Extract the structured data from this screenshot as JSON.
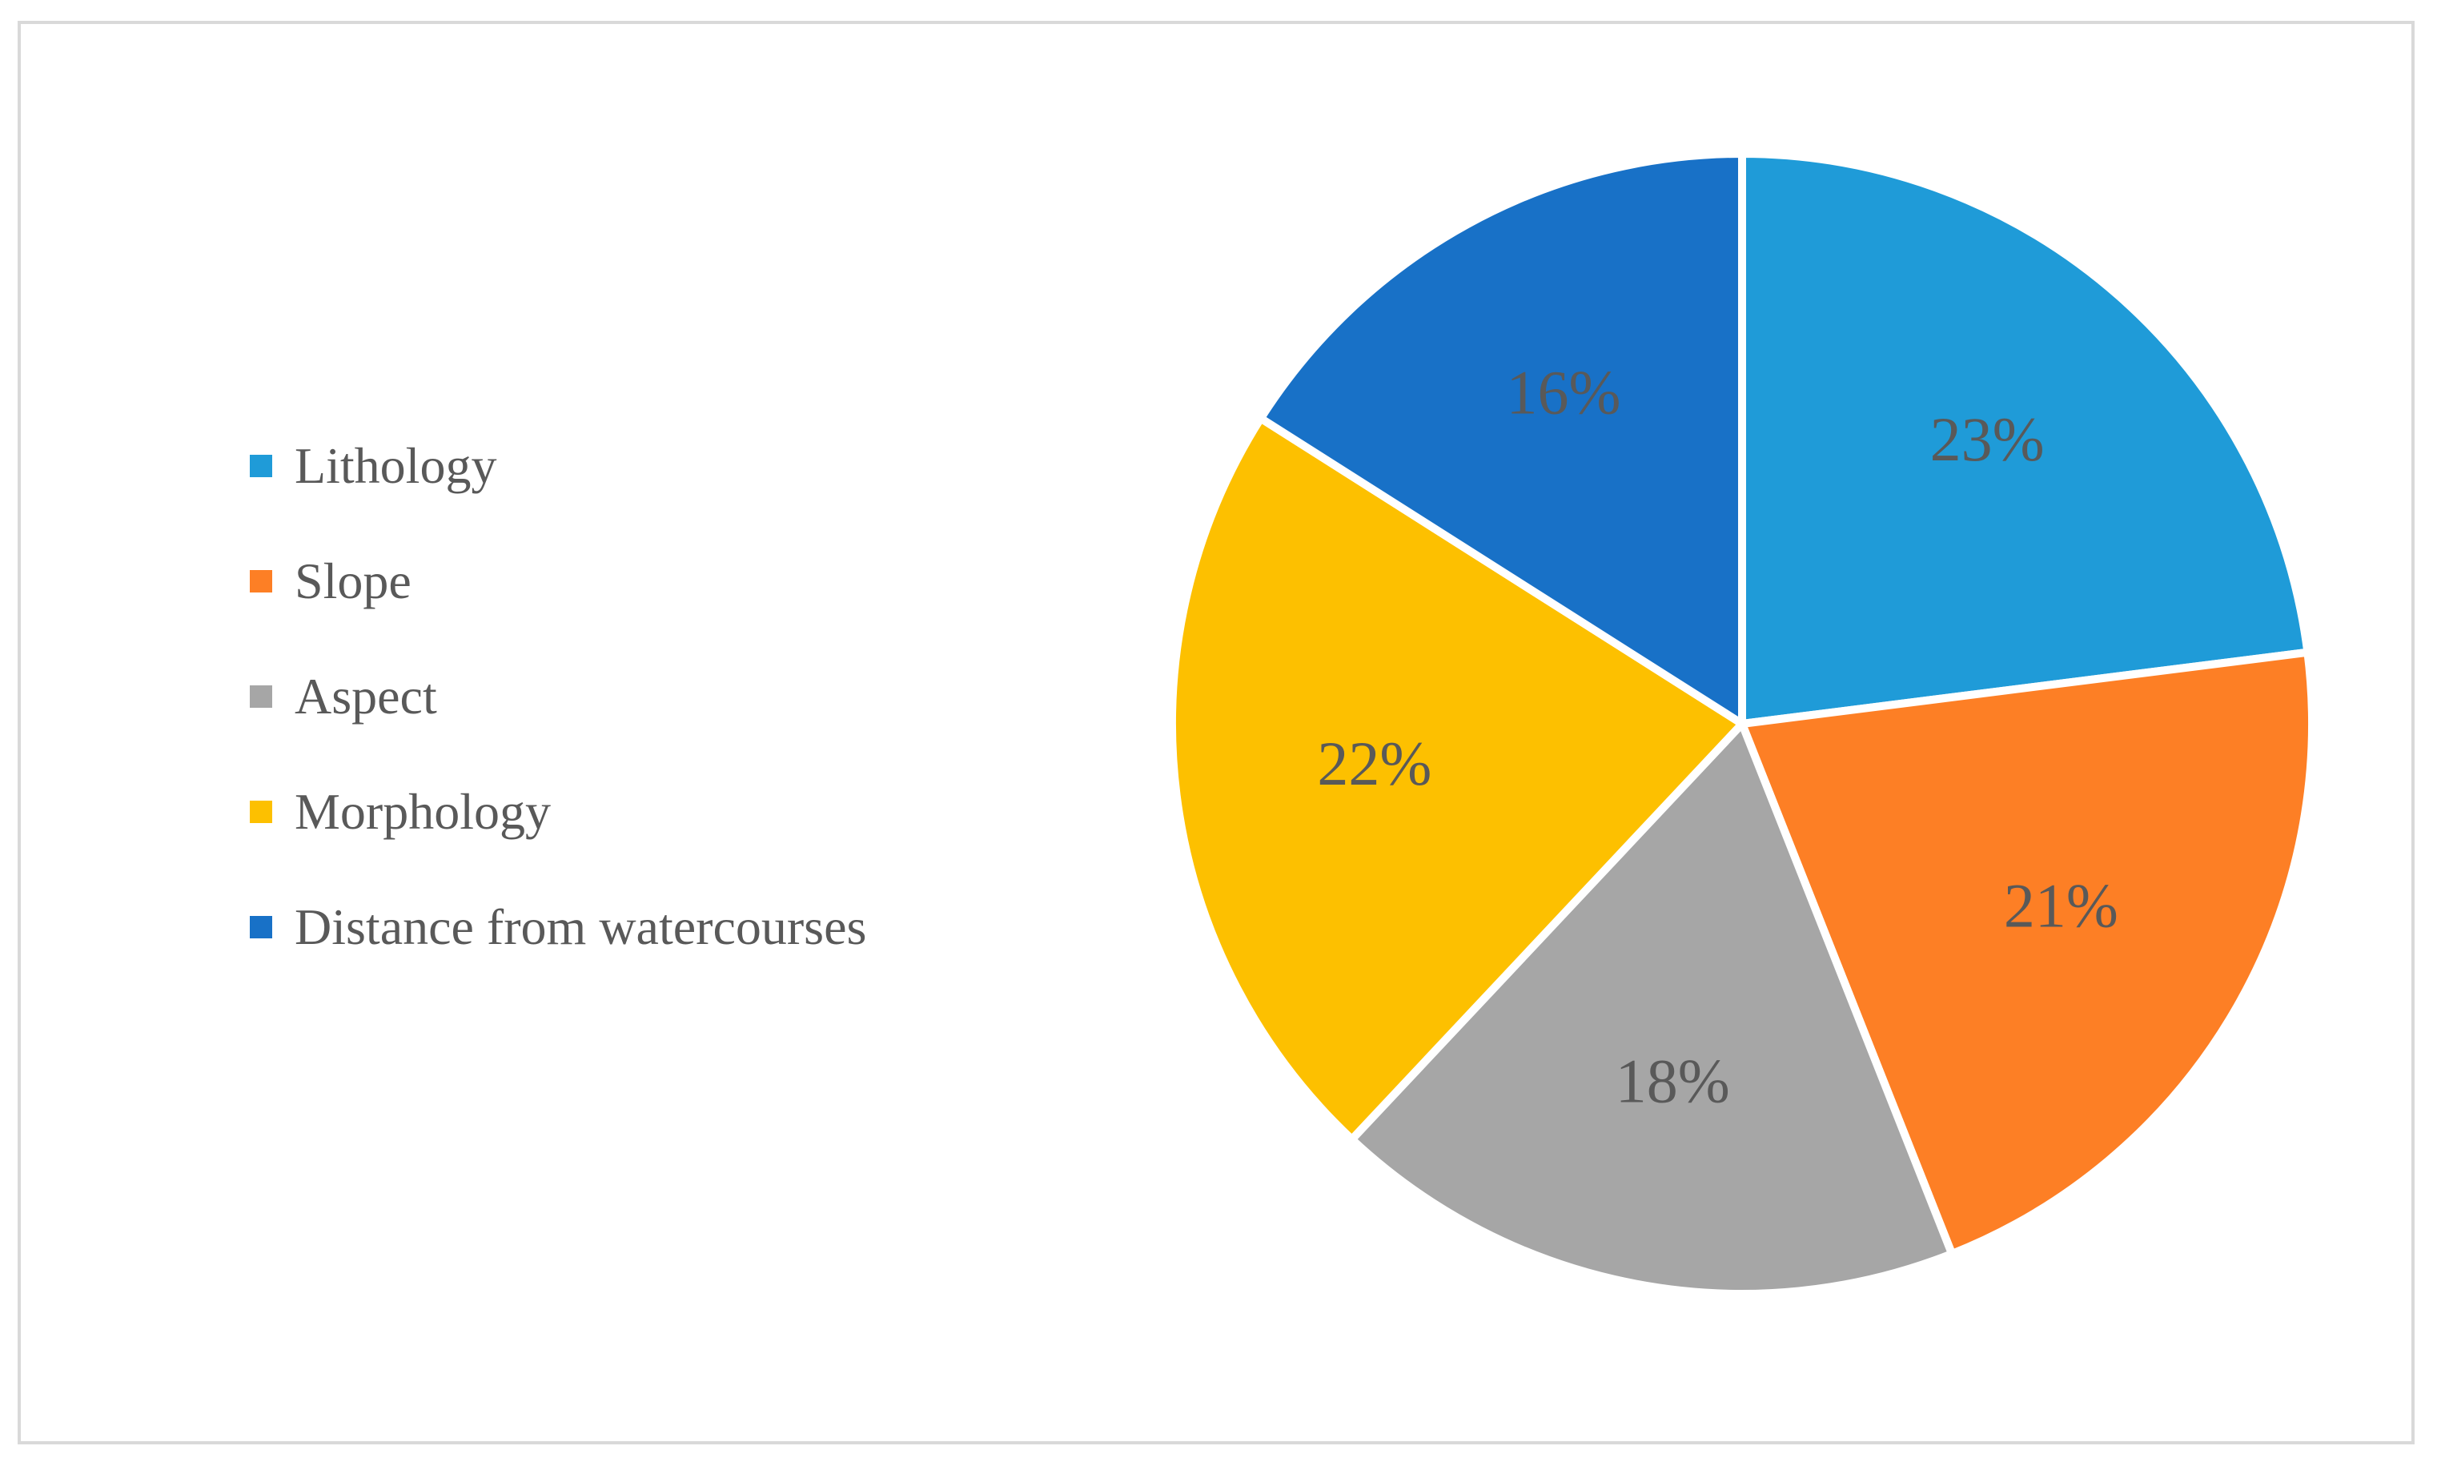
{
  "chart_data": {
    "type": "pie",
    "slices": [
      {
        "label": "Lithology",
        "value": 23,
        "value_label": "23%",
        "color": "#1f9bd8"
      },
      {
        "label": "Slope",
        "value": 21,
        "value_label": "21%",
        "color": "#fd7f25"
      },
      {
        "label": "Aspect",
        "value": 18,
        "value_label": "18%",
        "color": "#a6a6a6"
      },
      {
        "label": "Morphology",
        "value": 22,
        "value_label": "22%",
        "color": "#fdc000"
      },
      {
        "label": "Distance from watercourses",
        "value": 16,
        "value_label": "16%",
        "color": "#1871c7"
      }
    ],
    "legend_position": "left",
    "label_color": "#595959",
    "border_color": "#d9d9d9"
  }
}
